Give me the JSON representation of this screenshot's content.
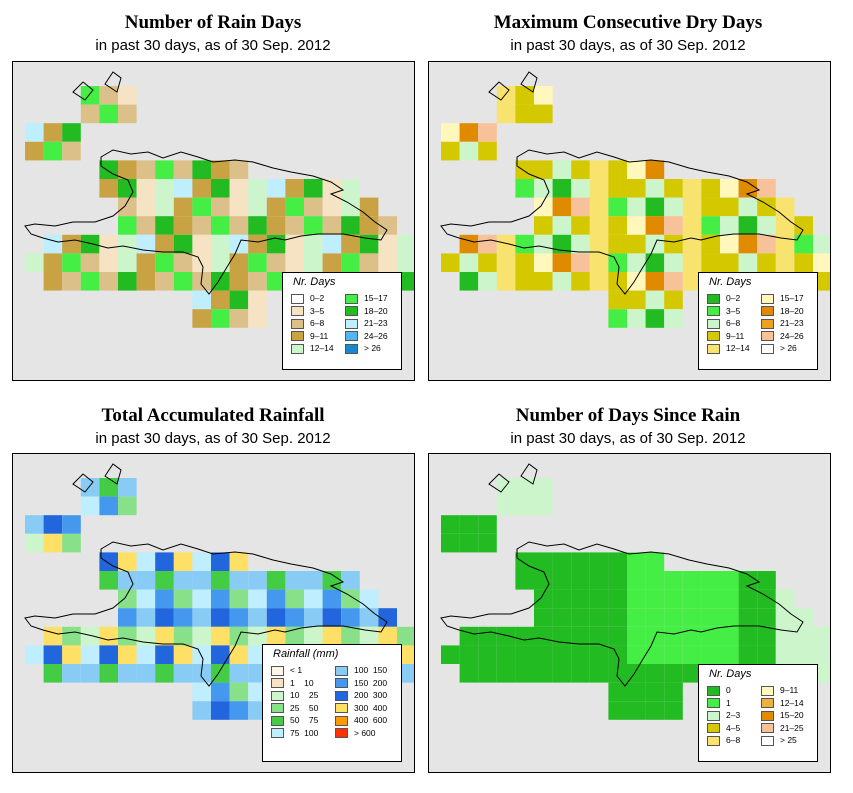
{
  "panels": [
    {
      "id": "rain_days",
      "title": "Number of Rain Days",
      "subtitle": "in past 30 days, as of  30 Sep. 2012",
      "legend": {
        "title": "Nr. Days",
        "items": [
          {
            "label": "0–2",
            "color": "#ffffff"
          },
          {
            "label": "3–5",
            "color": "#f5e3c3"
          },
          {
            "label": "6–8",
            "color": "#dcc08a"
          },
          {
            "label": "9–11",
            "color": "#c9a243"
          },
          {
            "label": "12–14",
            "color": "#ccf5cc"
          },
          {
            "label": "15–17",
            "color": "#44ee44"
          },
          {
            "label": "18–20",
            "color": "#22bb22"
          },
          {
            "label": "21–23",
            "color": "#bfeeff"
          },
          {
            "label": "24–26",
            "color": "#55b5ee"
          },
          {
            "label": "> 26",
            "color": "#1a88cc"
          }
        ]
      }
    },
    {
      "id": "dry_days",
      "title": "Maximum Consecutive Dry Days",
      "subtitle": "in past 30 days, as of  30 Sep. 2012",
      "legend": {
        "title": "Nr. Days",
        "items": [
          {
            "label": "0–2",
            "color": "#22bb22"
          },
          {
            "label": "3–5",
            "color": "#44ee44"
          },
          {
            "label": "6–8",
            "color": "#ccf5cc"
          },
          {
            "label": "9–11",
            "color": "#d4c800"
          },
          {
            "label": "12–14",
            "color": "#f7e36e"
          },
          {
            "label": "15–17",
            "color": "#fff7bb"
          },
          {
            "label": "18–20",
            "color": "#e08a00"
          },
          {
            "label": "21–23",
            "color": "#f0a020"
          },
          {
            "label": "24–26",
            "color": "#f7c29a"
          },
          {
            "label": "> 26",
            "color": "#ffffff"
          }
        ]
      }
    },
    {
      "id": "rainfall",
      "title": "Total Accumulated Rainfall",
      "subtitle": "in past 30 days, as of  30 Sep. 2012",
      "legend": {
        "title": "Rainfall (mm)",
        "items": [
          {
            "label": "< 1",
            "color": "#fff5e8"
          },
          {
            "label": "1    10",
            "color": "#f5e3c3"
          },
          {
            "label": "10    25",
            "color": "#ccf5cc"
          },
          {
            "label": "25    50",
            "color": "#88e088"
          },
          {
            "label": "50    75",
            "color": "#44cc44"
          },
          {
            "label": "75  100",
            "color": "#bfeeff"
          },
          {
            "label": "100  150",
            "color": "#88ccf5"
          },
          {
            "label": "150  200",
            "color": "#4499ee"
          },
          {
            "label": "200  300",
            "color": "#2266dd"
          },
          {
            "label": "300  400",
            "color": "#ffe066"
          },
          {
            "label": "400  600",
            "color": "#ff9900"
          },
          {
            "label": "> 600",
            "color": "#ff3300"
          }
        ]
      }
    },
    {
      "id": "since_rain",
      "title": "Number of Days Since Rain",
      "subtitle": "in past 30 days, as of  30 Sep. 2012",
      "legend": {
        "title": "Nr. Days",
        "items": [
          {
            "label": "0",
            "color": "#22bb22"
          },
          {
            "label": "1",
            "color": "#44ee44"
          },
          {
            "label": "2–3",
            "color": "#ccf5cc"
          },
          {
            "label": "4–5",
            "color": "#d4c800"
          },
          {
            "label": "6–8",
            "color": "#f7e36e"
          },
          {
            "label": "9–11",
            "color": "#fff7bb"
          },
          {
            "label": "12–14",
            "color": "#f0b040"
          },
          {
            "label": "15–20",
            "color": "#e08a00"
          },
          {
            "label": "21–25",
            "color": "#f7c29a"
          },
          {
            "label": "> 25",
            "color": "#ffffff"
          }
        ]
      }
    }
  ],
  "colors": {
    "map_background": "#e5e5e5",
    "coastline": "#000000"
  }
}
